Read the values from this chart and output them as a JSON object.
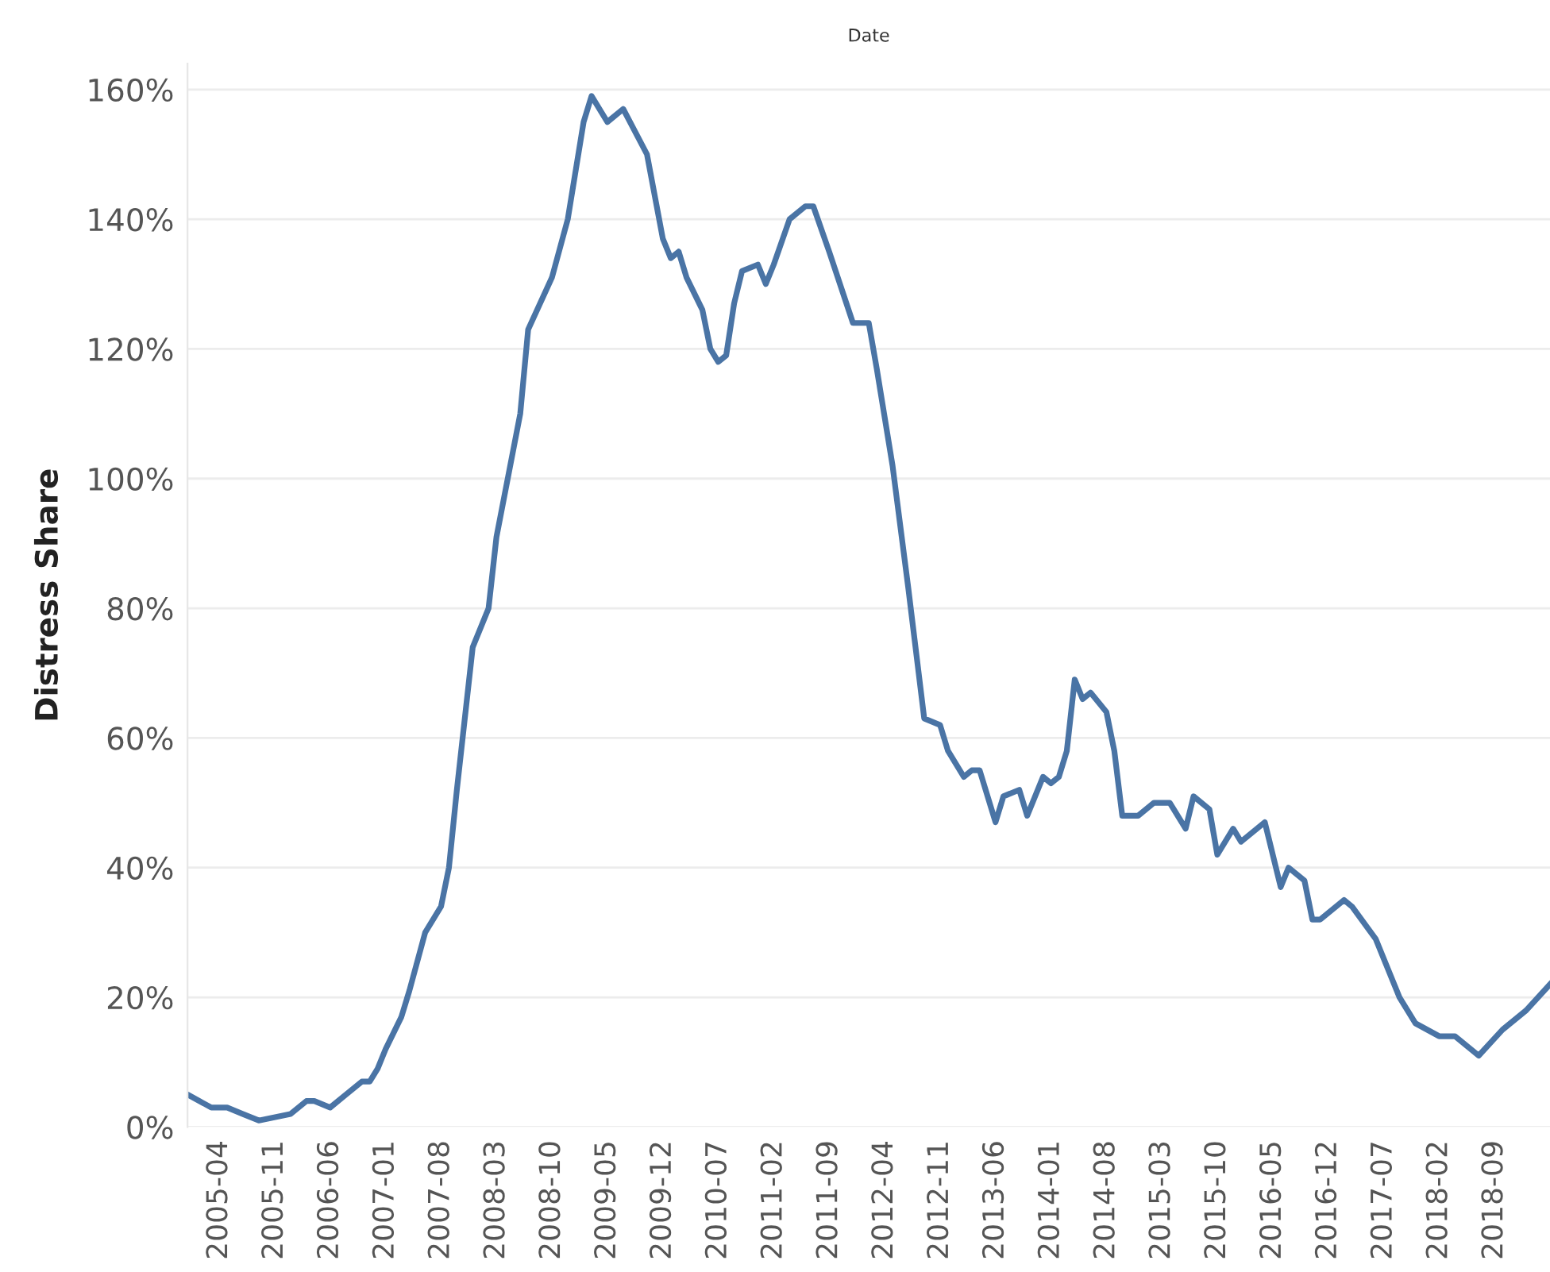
{
  "chart_data": {
    "type": "line",
    "xlabel": "Date",
    "ylabel": "Distress Share",
    "x": [
      "2004-12",
      "2005-03",
      "2005-05",
      "2005-07",
      "2005-09",
      "2006-01",
      "2006-03",
      "2006-04",
      "2006-06",
      "2006-08",
      "2006-10",
      "2006-11",
      "2006-12",
      "2007-01",
      "2007-03",
      "2007-04",
      "2007-06",
      "2007-08",
      "2007-09",
      "2007-10",
      "2007-12",
      "2008-02",
      "2008-03",
      "2008-06",
      "2008-07",
      "2008-10",
      "2008-12",
      "2009-02",
      "2009-03",
      "2009-05",
      "2009-07",
      "2009-10",
      "2009-12",
      "2010-01",
      "2010-02",
      "2010-03",
      "2010-05",
      "2010-06",
      "2010-07",
      "2010-08",
      "2010-09",
      "2010-10",
      "2010-12",
      "2011-01",
      "2011-02",
      "2011-04",
      "2011-06",
      "2011-07",
      "2011-09",
      "2011-12",
      "2012-02",
      "2012-03",
      "2012-05",
      "2012-07",
      "2012-09",
      "2012-11",
      "2012-12",
      "2013-02",
      "2013-03",
      "2013-04",
      "2013-06",
      "2013-07",
      "2013-09",
      "2013-10",
      "2013-12",
      "2014-01",
      "2014-02",
      "2014-03",
      "2014-04",
      "2014-05",
      "2014-06",
      "2014-08",
      "2014-09",
      "2014-10",
      "2014-12",
      "2015-02",
      "2015-04",
      "2015-06",
      "2015-07",
      "2015-09",
      "2015-10",
      "2015-12",
      "2016-01",
      "2016-04",
      "2016-06",
      "2016-07",
      "2016-09",
      "2016-10",
      "2016-11",
      "2017-02",
      "2017-03",
      "2017-06",
      "2017-09",
      "2017-11",
      "2018-02",
      "2018-04",
      "2018-07",
      "2018-10",
      "2019-01",
      "2019-04"
    ],
    "series": [
      {
        "color": "#4a74a5",
        "values": [
          5,
          3,
          3,
          2,
          1,
          2,
          4,
          4,
          3,
          5,
          7,
          7,
          9,
          12,
          17,
          21,
          30,
          34,
          40,
          52,
          74,
          80,
          91,
          110,
          123,
          131,
          140,
          155,
          159,
          155,
          157,
          150,
          137,
          134,
          135,
          131,
          126,
          120,
          118,
          119,
          127,
          132,
          133,
          130,
          133,
          140,
          142,
          142,
          135,
          124,
          124,
          117,
          102,
          83,
          63,
          62,
          58,
          54,
          55,
          55,
          47,
          51,
          52,
          48,
          54,
          53,
          54,
          58,
          69,
          66,
          67,
          64,
          58,
          48,
          48,
          50,
          50,
          46,
          51,
          49,
          42,
          46,
          44,
          47,
          37,
          40,
          38,
          32,
          32,
          35,
          34,
          29,
          20,
          16,
          14,
          14,
          11,
          15,
          18,
          22
        ]
      }
    ],
    "xlim": [
      "2004-12",
      "2019-04"
    ],
    "xticks": [
      "2005-04",
      "2005-11",
      "2006-06",
      "2007-01",
      "2007-08",
      "2008-03",
      "2008-10",
      "2009-05",
      "2009-12",
      "2010-07",
      "2011-02",
      "2011-09",
      "2012-04",
      "2012-11",
      "2013-06",
      "2014-01",
      "2014-08",
      "2015-03",
      "2015-10",
      "2016-05",
      "2016-12",
      "2017-07",
      "2018-02",
      "2018-09"
    ],
    "ylim": [
      0,
      164
    ],
    "yticks": [
      {
        "value": 0,
        "label": "0%"
      },
      {
        "value": 20,
        "label": "20%"
      },
      {
        "value": 40,
        "label": "40%"
      },
      {
        "value": 60,
        "label": "60%"
      },
      {
        "value": 80,
        "label": "80%"
      },
      {
        "value": 100,
        "label": "100%"
      },
      {
        "value": 120,
        "label": "120%"
      },
      {
        "value": 140,
        "label": "140%"
      },
      {
        "value": 160,
        "label": "160%"
      }
    ],
    "grid": "y",
    "marker": "none",
    "line_style": "solid"
  }
}
